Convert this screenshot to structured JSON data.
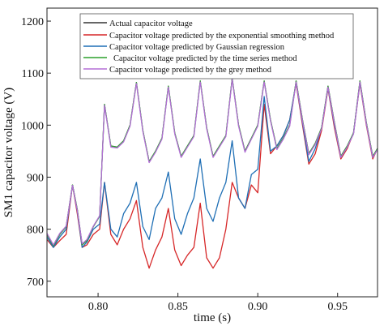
{
  "chart_data": {
    "type": "line",
    "xlabel": "time (s)",
    "ylabel": "SM1 capacitor voltage (V)",
    "xlim": [
      0.768,
      0.975
    ],
    "ylim": [
      670,
      1225
    ],
    "xticks": [
      0.8,
      0.85,
      0.9,
      0.95
    ],
    "xtick_labels": [
      "0.80",
      "0.85",
      "0.90",
      "0.95"
    ],
    "yticks": [
      700,
      800,
      900,
      1000,
      1100,
      1200
    ],
    "ytick_labels": [
      "700",
      "800",
      "900",
      "1000",
      "1100",
      "1200"
    ],
    "grid": false,
    "legend_position": "top",
    "series": [
      {
        "name": "Actual capacitor voltage",
        "color": "#333333",
        "x": [
          0.768,
          0.772,
          0.776,
          0.78,
          0.784,
          0.787,
          0.79,
          0.793,
          0.797,
          0.801,
          0.804,
          0.808,
          0.812,
          0.816,
          0.82,
          0.824,
          0.828,
          0.832,
          0.836,
          0.84,
          0.844,
          0.848,
          0.852,
          0.856,
          0.86,
          0.864,
          0.868,
          0.872,
          0.876,
          0.88,
          0.884,
          0.888,
          0.892,
          0.896,
          0.9,
          0.904,
          0.908,
          0.912,
          0.916,
          0.92,
          0.924,
          0.928,
          0.932,
          0.936,
          0.94,
          0.944,
          0.948,
          0.952,
          0.956,
          0.96,
          0.964,
          0.968,
          0.972,
          0.975
        ],
        "y": [
          790,
          768,
          790,
          805,
          885,
          838,
          770,
          778,
          805,
          825,
          1040,
          960,
          958,
          970,
          1000,
          1082,
          990,
          930,
          950,
          975,
          1075,
          985,
          940,
          960,
          980,
          1085,
          995,
          940,
          960,
          980,
          1090,
          1000,
          950,
          975,
          1000,
          1085,
          1010,
          955,
          975,
          1000,
          1085,
          1010,
          945,
          965,
          995,
          1075,
          1005,
          940,
          960,
          985,
          1085,
          1005,
          940,
          955
        ]
      },
      {
        "name": "Capacitor voltage predicted by the exponential smoothing method",
        "color": "#d62728",
        "x": [
          0.768,
          0.772,
          0.776,
          0.78,
          0.784,
          0.787,
          0.79,
          0.793,
          0.797,
          0.801,
          0.804,
          0.808,
          0.812,
          0.816,
          0.82,
          0.824,
          0.828,
          0.832,
          0.836,
          0.84,
          0.844,
          0.848,
          0.852,
          0.856,
          0.86,
          0.864,
          0.868,
          0.872,
          0.876,
          0.88,
          0.884,
          0.888,
          0.892,
          0.896,
          0.9,
          0.904,
          0.908,
          0.912,
          0.916,
          0.92,
          0.924,
          0.928,
          0.932,
          0.936,
          0.94,
          0.944,
          0.948,
          0.952,
          0.956,
          0.96,
          0.964,
          0.968,
          0.972,
          0.975
        ],
        "y": [
          780,
          765,
          778,
          790,
          885,
          830,
          765,
          770,
          790,
          800,
          890,
          790,
          770,
          800,
          820,
          855,
          765,
          725,
          760,
          785,
          840,
          760,
          730,
          750,
          765,
          850,
          745,
          725,
          745,
          800,
          890,
          860,
          840,
          885,
          870,
          1040,
          945,
          960,
          980,
          1010,
          1080,
          1000,
          925,
          945,
          990,
          1070,
          995,
          935,
          955,
          985,
          1080,
          1000,
          935,
          955
        ]
      },
      {
        "name": "Capacitor voltage predicted by Gaussian regression",
        "color": "#1f6fb5",
        "x": [
          0.768,
          0.772,
          0.776,
          0.78,
          0.784,
          0.787,
          0.79,
          0.793,
          0.797,
          0.801,
          0.804,
          0.808,
          0.812,
          0.816,
          0.82,
          0.824,
          0.828,
          0.832,
          0.836,
          0.84,
          0.844,
          0.848,
          0.852,
          0.856,
          0.86,
          0.864,
          0.868,
          0.872,
          0.876,
          0.88,
          0.884,
          0.888,
          0.892,
          0.896,
          0.9,
          0.904,
          0.908,
          0.912,
          0.916,
          0.92,
          0.924,
          0.928,
          0.932,
          0.936,
          0.94,
          0.944,
          0.948,
          0.952,
          0.956,
          0.96,
          0.964,
          0.968,
          0.972,
          0.975
        ],
        "y": [
          785,
          765,
          785,
          800,
          885,
          835,
          765,
          775,
          800,
          810,
          890,
          800,
          785,
          830,
          850,
          890,
          805,
          780,
          840,
          860,
          910,
          820,
          790,
          830,
          860,
          935,
          840,
          815,
          860,
          890,
          970,
          860,
          840,
          905,
          915,
          1055,
          950,
          960,
          980,
          1010,
          1082,
          1005,
          930,
          955,
          995,
          1072,
          1000,
          938,
          958,
          985,
          1082,
          1003,
          938,
          955
        ]
      },
      {
        "name": "Capacitor voltage predicted by the time series method",
        "color": "#2ca02c",
        "x": [
          0.768,
          0.772,
          0.776,
          0.78,
          0.784,
          0.787,
          0.79,
          0.793,
          0.797,
          0.801,
          0.804,
          0.808,
          0.812,
          0.816,
          0.82,
          0.824,
          0.828,
          0.832,
          0.836,
          0.84,
          0.844,
          0.848,
          0.852,
          0.856,
          0.86,
          0.864,
          0.868,
          0.872,
          0.876,
          0.88,
          0.884,
          0.888,
          0.892,
          0.896,
          0.9,
          0.904,
          0.908,
          0.912,
          0.916,
          0.92,
          0.924,
          0.928,
          0.932,
          0.936,
          0.94,
          0.944,
          0.948,
          0.952,
          0.956,
          0.96,
          0.964,
          0.968,
          0.972,
          0.975
        ],
        "y": [
          790,
          768,
          790,
          805,
          885,
          838,
          770,
          778,
          805,
          825,
          1040,
          960,
          958,
          970,
          1000,
          1082,
          990,
          930,
          950,
          975,
          1075,
          985,
          940,
          960,
          980,
          1085,
          995,
          940,
          960,
          980,
          1090,
          1000,
          950,
          975,
          1000,
          1085,
          1010,
          955,
          975,
          1000,
          1085,
          1010,
          945,
          965,
          995,
          1075,
          1005,
          940,
          960,
          985,
          1085,
          1005,
          940,
          955
        ]
      },
      {
        "name": "Capacitor voltage predicted by the grey method",
        "color": "#b36fd6",
        "x": [
          0.768,
          0.772,
          0.776,
          0.78,
          0.784,
          0.787,
          0.79,
          0.793,
          0.797,
          0.801,
          0.804,
          0.808,
          0.812,
          0.816,
          0.82,
          0.824,
          0.828,
          0.832,
          0.836,
          0.84,
          0.844,
          0.848,
          0.852,
          0.856,
          0.86,
          0.864,
          0.868,
          0.872,
          0.876,
          0.88,
          0.884,
          0.888,
          0.892,
          0.896,
          0.9,
          0.904,
          0.908,
          0.912,
          0.916,
          0.92,
          0.924,
          0.928,
          0.932,
          0.936,
          0.94,
          0.944,
          0.948,
          0.952,
          0.956,
          0.96,
          0.964,
          0.968,
          0.972,
          0.975
        ],
        "y": [
          792,
          770,
          792,
          806,
          884,
          836,
          772,
          780,
          806,
          826,
          1038,
          958,
          956,
          968,
          998,
          1080,
          988,
          928,
          948,
          973,
          1073,
          983,
          938,
          958,
          978,
          1083,
          993,
          938,
          958,
          978,
          1088,
          998,
          948,
          973,
          998,
          1083,
          1008,
          953,
          973,
          998,
          1083,
          1008,
          943,
          963,
          993,
          1073,
          1003,
          938,
          958,
          983,
          1083,
          1003,
          938,
          953
        ]
      }
    ]
  }
}
